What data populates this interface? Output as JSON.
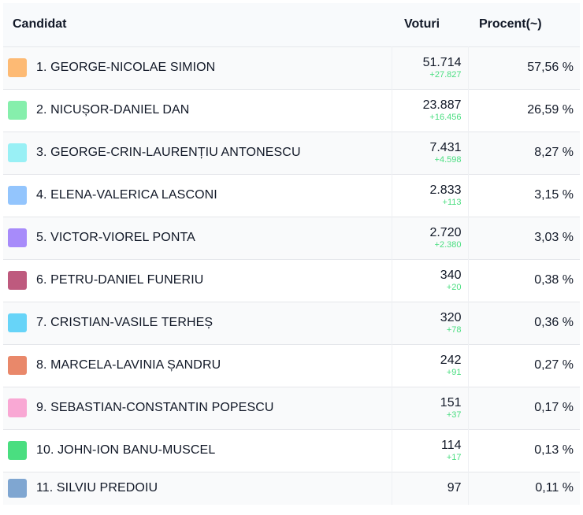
{
  "header": {
    "candidate": "Candidat",
    "votes": "Voturi",
    "percent": "Procent(~)"
  },
  "rows": [
    {
      "name": "1. GEORGE-NICOLAE SIMION",
      "votes": "51.714",
      "delta": "+27.827",
      "percent": "57,56 %",
      "color": "#fdba74"
    },
    {
      "name": "2. NICUȘOR-DANIEL DAN",
      "votes": "23.887",
      "delta": "+16.456",
      "percent": "26,59 %",
      "color": "#86efac"
    },
    {
      "name": "3. GEORGE-CRIN-LAURENȚIU ANTONESCU",
      "votes": "7.431",
      "delta": "+4.598",
      "percent": "8,27 %",
      "color": "#99f0f5"
    },
    {
      "name": "4. ELENA-VALERICA LASCONI",
      "votes": "2.833",
      "delta": "+113",
      "percent": "3,15 %",
      "color": "#93c5fd"
    },
    {
      "name": "5. VICTOR-VIOREL PONTA",
      "votes": "2.720",
      "delta": "+2.380",
      "percent": "3,03 %",
      "color": "#a78bfa"
    },
    {
      "name": "6. PETRU-DANIEL FUNERIU",
      "votes": "340",
      "delta": "+20",
      "percent": "0,38 %",
      "color": "#be5a7e"
    },
    {
      "name": "7. CRISTIAN-VASILE TERHEȘ",
      "votes": "320",
      "delta": "+78",
      "percent": "0,36 %",
      "color": "#67d4f8"
    },
    {
      "name": "8. MARCELA-LAVINIA ȘANDRU",
      "votes": "242",
      "delta": "+91",
      "percent": "0,27 %",
      "color": "#e9886a"
    },
    {
      "name": "9. SEBASTIAN-CONSTANTIN POPESCU",
      "votes": "151",
      "delta": "+37",
      "percent": "0,17 %",
      "color": "#f9a8d4"
    },
    {
      "name": "10. JOHN-ION BANU-MUSCEL",
      "votes": "114",
      "delta": "+17",
      "percent": "0,13 %",
      "color": "#4ade80"
    },
    {
      "name": "11. SILVIU PREDOIU",
      "votes": "97",
      "delta": "",
      "percent": "0,11 %",
      "color": "#7fa6d1"
    }
  ]
}
